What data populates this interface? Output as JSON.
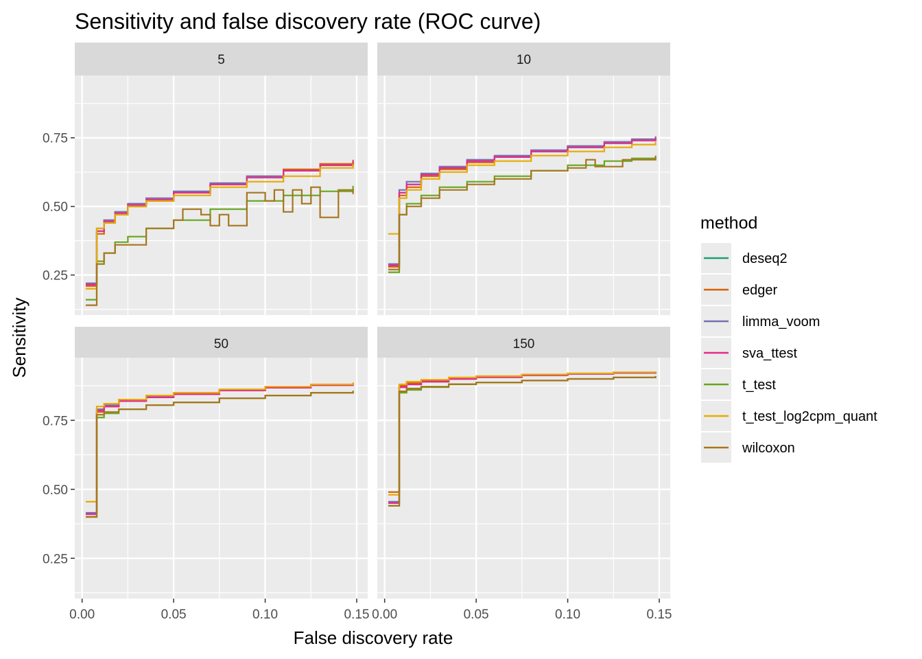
{
  "chart_data": {
    "type": "line",
    "title": "Sensitivity and false discovery rate (ROC curve)",
    "xlabel": "False discovery rate",
    "ylabel": "Sensitivity",
    "xlim": [
      -0.004,
      0.156
    ],
    "x_ticks": [
      0.0,
      0.05,
      0.1,
      0.15
    ],
    "x_tick_labels": [
      "0.00",
      "0.05",
      "0.10",
      "0.15"
    ],
    "ylim": [
      0.104,
      0.977
    ],
    "y_ticks": [
      0.25,
      0.5,
      0.75
    ],
    "y_tick_labels": [
      "0.25",
      "0.50",
      "0.75"
    ],
    "grid": true,
    "legend": {
      "title": "method",
      "placement": "right",
      "entries": [
        "deseq2",
        "edger",
        "limma_voom",
        "sva_ttest",
        "t_test",
        "t_test_log2cpm_quant",
        "wilcoxon"
      ]
    },
    "colors": {
      "deseq2": "#1b9e77",
      "edger": "#d95f02",
      "limma_voom": "#7570b3",
      "sva_ttest": "#e7298a",
      "t_test": "#66a61e",
      "t_test_log2cpm_quant": "#e6ab02",
      "wilcoxon": "#a6761d"
    },
    "facets": [
      {
        "label": "5",
        "series": [
          {
            "name": "deseq2",
            "x": [
              0.005,
              0.008,
              0.012,
              0.018,
              0.025,
              0.035,
              0.05,
              0.07,
              0.09,
              0.11,
              0.13,
              0.148
            ],
            "y": [
              0.22,
              0.42,
              0.45,
              0.48,
              0.5,
              0.52,
              0.55,
              0.58,
              0.61,
              0.63,
              0.65,
              0.665
            ]
          },
          {
            "name": "edger",
            "x": [
              0.005,
              0.008,
              0.012,
              0.018,
              0.025,
              0.035,
              0.05,
              0.07,
              0.09,
              0.11,
              0.13,
              0.148
            ],
            "y": [
              0.21,
              0.4,
              0.44,
              0.47,
              0.5,
              0.52,
              0.55,
              0.58,
              0.61,
              0.635,
              0.655,
              0.67
            ]
          },
          {
            "name": "limma_voom",
            "x": [
              0.005,
              0.008,
              0.012,
              0.018,
              0.025,
              0.035,
              0.05,
              0.07,
              0.09,
              0.11,
              0.13,
              0.148
            ],
            "y": [
              0.22,
              0.41,
              0.45,
              0.48,
              0.51,
              0.53,
              0.555,
              0.585,
              0.61,
              0.63,
              0.65,
              0.665
            ]
          },
          {
            "name": "sva_ttest",
            "x": [
              0.005,
              0.008,
              0.012,
              0.018,
              0.025,
              0.035,
              0.05,
              0.07,
              0.09,
              0.11,
              0.13,
              0.148
            ],
            "y": [
              0.215,
              0.41,
              0.445,
              0.475,
              0.505,
              0.525,
              0.55,
              0.58,
              0.605,
              0.63,
              0.65,
              0.665
            ]
          },
          {
            "name": "t_test",
            "x": [
              0.005,
              0.008,
              0.012,
              0.018,
              0.025,
              0.035,
              0.05,
              0.07,
              0.09,
              0.11,
              0.13,
              0.148
            ],
            "y": [
              0.16,
              0.3,
              0.33,
              0.37,
              0.39,
              0.42,
              0.45,
              0.49,
              0.52,
              0.54,
              0.555,
              0.575
            ]
          },
          {
            "name": "t_test_log2cpm_quant",
            "x": [
              0.005,
              0.008,
              0.012,
              0.018,
              0.025,
              0.035,
              0.05,
              0.07,
              0.09,
              0.11,
              0.13,
              0.148
            ],
            "y": [
              0.2,
              0.42,
              0.44,
              0.47,
              0.5,
              0.52,
              0.54,
              0.57,
              0.59,
              0.61,
              0.64,
              0.655
            ]
          },
          {
            "name": "wilcoxon",
            "x": [
              0.005,
              0.008,
              0.012,
              0.018,
              0.025,
              0.035,
              0.05,
              0.055,
              0.065,
              0.07,
              0.075,
              0.08,
              0.09,
              0.1,
              0.105,
              0.11,
              0.115,
              0.12,
              0.125,
              0.13,
              0.14,
              0.148
            ],
            "y": [
              0.14,
              0.29,
              0.33,
              0.36,
              0.36,
              0.42,
              0.45,
              0.49,
              0.47,
              0.43,
              0.47,
              0.43,
              0.55,
              0.52,
              0.56,
              0.48,
              0.56,
              0.51,
              0.57,
              0.46,
              0.56,
              0.545
            ]
          }
        ]
      },
      {
        "label": "10",
        "series": [
          {
            "name": "deseq2",
            "x": [
              0.005,
              0.008,
              0.012,
              0.02,
              0.03,
              0.045,
              0.06,
              0.08,
              0.1,
              0.12,
              0.135,
              0.148
            ],
            "y": [
              0.29,
              0.55,
              0.58,
              0.62,
              0.64,
              0.665,
              0.68,
              0.7,
              0.715,
              0.73,
              0.74,
              0.75
            ]
          },
          {
            "name": "edger",
            "x": [
              0.005,
              0.008,
              0.012,
              0.02,
              0.03,
              0.045,
              0.06,
              0.08,
              0.1,
              0.12,
              0.135,
              0.148
            ],
            "y": [
              0.28,
              0.54,
              0.57,
              0.61,
              0.635,
              0.66,
              0.68,
              0.7,
              0.72,
              0.735,
              0.745,
              0.755
            ]
          },
          {
            "name": "limma_voom",
            "x": [
              0.005,
              0.008,
              0.012,
              0.02,
              0.03,
              0.045,
              0.06,
              0.08,
              0.1,
              0.12,
              0.135,
              0.148
            ],
            "y": [
              0.29,
              0.56,
              0.59,
              0.62,
              0.645,
              0.67,
              0.685,
              0.705,
              0.72,
              0.735,
              0.745,
              0.755
            ]
          },
          {
            "name": "sva_ttest",
            "x": [
              0.005,
              0.008,
              0.012,
              0.02,
              0.03,
              0.045,
              0.06,
              0.08,
              0.1,
              0.12,
              0.135,
              0.148
            ],
            "y": [
              0.285,
              0.55,
              0.58,
              0.615,
              0.64,
              0.665,
              0.68,
              0.7,
              0.715,
              0.73,
              0.74,
              0.75
            ]
          },
          {
            "name": "t_test",
            "x": [
              0.005,
              0.008,
              0.012,
              0.02,
              0.03,
              0.045,
              0.06,
              0.08,
              0.1,
              0.12,
              0.135,
              0.148
            ],
            "y": [
              0.26,
              0.47,
              0.51,
              0.54,
              0.57,
              0.59,
              0.61,
              0.63,
              0.65,
              0.665,
              0.675,
              0.68
            ]
          },
          {
            "name": "t_test_log2cpm_quant",
            "x": [
              0.005,
              0.008,
              0.012,
              0.02,
              0.03,
              0.045,
              0.06,
              0.08,
              0.1,
              0.12,
              0.135,
              0.148
            ],
            "y": [
              0.4,
              0.53,
              0.56,
              0.6,
              0.625,
              0.65,
              0.665,
              0.685,
              0.7,
              0.715,
              0.725,
              0.735
            ]
          },
          {
            "name": "wilcoxon",
            "x": [
              0.005,
              0.008,
              0.012,
              0.02,
              0.03,
              0.045,
              0.06,
              0.08,
              0.1,
              0.11,
              0.115,
              0.13,
              0.148
            ],
            "y": [
              0.27,
              0.47,
              0.5,
              0.53,
              0.56,
              0.58,
              0.6,
              0.63,
              0.64,
              0.67,
              0.645,
              0.67,
              0.685
            ]
          }
        ]
      },
      {
        "label": "50",
        "series": [
          {
            "name": "deseq2",
            "x": [
              0.005,
              0.008,
              0.012,
              0.02,
              0.035,
              0.05,
              0.075,
              0.1,
              0.125,
              0.148
            ],
            "y": [
              0.41,
              0.79,
              0.8,
              0.82,
              0.835,
              0.845,
              0.86,
              0.87,
              0.878,
              0.885
            ]
          },
          {
            "name": "edger",
            "x": [
              0.005,
              0.008,
              0.012,
              0.02,
              0.035,
              0.05,
              0.075,
              0.1,
              0.125,
              0.148
            ],
            "y": [
              0.4,
              0.78,
              0.8,
              0.82,
              0.835,
              0.845,
              0.86,
              0.87,
              0.878,
              0.885
            ]
          },
          {
            "name": "limma_voom",
            "x": [
              0.005,
              0.008,
              0.012,
              0.02,
              0.035,
              0.05,
              0.075,
              0.1,
              0.125,
              0.148
            ],
            "y": [
              0.415,
              0.79,
              0.805,
              0.82,
              0.835,
              0.845,
              0.858,
              0.868,
              0.877,
              0.885
            ]
          },
          {
            "name": "sva_ttest",
            "x": [
              0.005,
              0.008,
              0.012,
              0.02,
              0.035,
              0.05,
              0.075,
              0.1,
              0.125,
              0.148
            ],
            "y": [
              0.41,
              0.785,
              0.8,
              0.82,
              0.833,
              0.845,
              0.858,
              0.868,
              0.877,
              0.884
            ]
          },
          {
            "name": "t_test",
            "x": [
              0.005,
              0.008,
              0.012,
              0.02,
              0.035,
              0.05,
              0.075,
              0.1,
              0.125,
              0.148
            ],
            "y": [
              0.4,
              0.76,
              0.775,
              0.79,
              0.805,
              0.815,
              0.83,
              0.84,
              0.85,
              0.857
            ]
          },
          {
            "name": "t_test_log2cpm_quant",
            "x": [
              0.005,
              0.008,
              0.012,
              0.02,
              0.035,
              0.05,
              0.075,
              0.1,
              0.125,
              0.148
            ],
            "y": [
              0.455,
              0.8,
              0.81,
              0.825,
              0.84,
              0.85,
              0.862,
              0.872,
              0.88,
              0.887
            ]
          },
          {
            "name": "wilcoxon",
            "x": [
              0.005,
              0.008,
              0.012,
              0.02,
              0.035,
              0.05,
              0.075,
              0.1,
              0.125,
              0.148
            ],
            "y": [
              0.4,
              0.77,
              0.78,
              0.79,
              0.805,
              0.815,
              0.83,
              0.84,
              0.85,
              0.857
            ]
          }
        ]
      },
      {
        "label": "150",
        "series": [
          {
            "name": "deseq2",
            "x": [
              0.005,
              0.008,
              0.012,
              0.02,
              0.035,
              0.05,
              0.075,
              0.1,
              0.125,
              0.148
            ],
            "y": [
              0.45,
              0.87,
              0.88,
              0.89,
              0.9,
              0.907,
              0.913,
              0.918,
              0.922,
              0.925
            ]
          },
          {
            "name": "edger",
            "x": [
              0.005,
              0.008,
              0.012,
              0.02,
              0.035,
              0.05,
              0.075,
              0.1,
              0.125,
              0.148
            ],
            "y": [
              0.49,
              0.875,
              0.885,
              0.893,
              0.902,
              0.908,
              0.914,
              0.919,
              0.923,
              0.926
            ]
          },
          {
            "name": "limma_voom",
            "x": [
              0.005,
              0.008,
              0.012,
              0.02,
              0.035,
              0.05,
              0.075,
              0.1,
              0.125,
              0.148
            ],
            "y": [
              0.455,
              0.87,
              0.88,
              0.89,
              0.9,
              0.906,
              0.913,
              0.918,
              0.922,
              0.925
            ]
          },
          {
            "name": "sva_ttest",
            "x": [
              0.005,
              0.008,
              0.012,
              0.02,
              0.035,
              0.05,
              0.075,
              0.1,
              0.125,
              0.148
            ],
            "y": [
              0.45,
              0.87,
              0.88,
              0.89,
              0.9,
              0.906,
              0.913,
              0.918,
              0.922,
              0.925
            ]
          },
          {
            "name": "t_test",
            "x": [
              0.005,
              0.008,
              0.012,
              0.02,
              0.035,
              0.05,
              0.075,
              0.1,
              0.125,
              0.148
            ],
            "y": [
              0.44,
              0.85,
              0.86,
              0.87,
              0.88,
              0.887,
              0.894,
              0.9,
              0.905,
              0.91
            ]
          },
          {
            "name": "t_test_log2cpm_quant",
            "x": [
              0.005,
              0.008,
              0.012,
              0.02,
              0.035,
              0.05,
              0.075,
              0.1,
              0.125,
              0.148
            ],
            "y": [
              0.48,
              0.88,
              0.89,
              0.897,
              0.905,
              0.91,
              0.916,
              0.92,
              0.924,
              0.927
            ]
          },
          {
            "name": "wilcoxon",
            "x": [
              0.005,
              0.008,
              0.012,
              0.02,
              0.035,
              0.05,
              0.075,
              0.1,
              0.125,
              0.148
            ],
            "y": [
              0.44,
              0.855,
              0.865,
              0.872,
              0.881,
              0.887,
              0.894,
              0.9,
              0.905,
              0.91
            ]
          }
        ]
      }
    ]
  }
}
